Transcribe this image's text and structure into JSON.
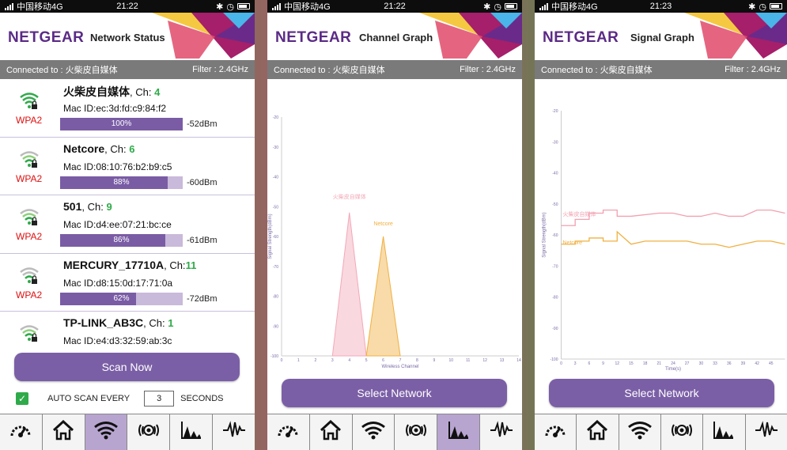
{
  "brand": "NETGEAR",
  "colors": {
    "purple": "#7b5fa6",
    "brand_purple": "#5b2a86",
    "wpa_red": "#e01010",
    "channel_green": "#2faa4a"
  },
  "screens": [
    {
      "status": {
        "carrier": "中国移动4G",
        "time": "21:22"
      },
      "title": "Network Status",
      "connected_label": "Connected to : 火柴皮自媒体",
      "filter_label": "Filter : 2.4GHz",
      "networks": [
        {
          "name": "火柴皮自媒体",
          "ch_label": ", Ch: ",
          "channel": "4",
          "mac": "Mac ID:ec:3d:fd:c9:84:f2",
          "security": "WPA2",
          "signal_pct": 100,
          "signal_text": "100%",
          "dbm": "-52dBm",
          "wifi_icon": "wifi-lock-icon"
        },
        {
          "name": "Netcore",
          "ch_label": ", Ch: ",
          "channel": "6",
          "mac": "Mac ID:08:10:76:b2:b9:c5",
          "security": "WPA2",
          "signal_pct": 88,
          "signal_text": "88%",
          "dbm": "-60dBm",
          "wifi_icon": "wifi-lock-icon"
        },
        {
          "name": "501",
          "ch_label": ", Ch: ",
          "channel": "9",
          "mac": "Mac ID:d4:ee:07:21:bc:ce",
          "security": "WPA2",
          "signal_pct": 86,
          "signal_text": "86%",
          "dbm": "-61dBm",
          "wifi_icon": "wifi-lock-icon"
        },
        {
          "name": "MERCURY_17710A",
          "ch_label": ", Ch:",
          "channel": "11",
          "mac": "Mac ID:d8:15:0d:17:71:0a",
          "security": "WPA2",
          "signal_pct": 62,
          "signal_text": "62%",
          "dbm": "-72dBm",
          "wifi_icon": "wifi-lock-icon"
        },
        {
          "name": "TP-LINK_AB3C",
          "ch_label": ", Ch: ",
          "channel": "1",
          "mac": "Mac ID:e4:d3:32:59:ab:3c",
          "security": "",
          "signal_pct": 0,
          "signal_text": "",
          "dbm": "",
          "wifi_icon": "wifi-lock-icon"
        }
      ],
      "scan_button": "Scan Now",
      "auto_scan_label": "AUTO SCAN EVERY",
      "auto_scan_value": "3",
      "seconds_label": "SECONDS",
      "auto_scan_checked": true,
      "active_nav": 2
    },
    {
      "status": {
        "carrier": "中国移动4G",
        "time": "21:22"
      },
      "title": "Channel Graph",
      "connected_label": "Connected to : 火柴皮自媒体",
      "filter_label": "Filter : 2.4GHz",
      "select_button": "Select Network",
      "active_nav": 4
    },
    {
      "status": {
        "carrier": "中国移动4G",
        "time": "21:23"
      },
      "title": "Signal Graph",
      "connected_label": "Connected to : 火柴皮自媒体",
      "filter_label": "Filter : 2.4GHz",
      "select_button": "Select Network",
      "active_nav": -1
    }
  ],
  "nav_icons": [
    "speedometer-icon",
    "home-icon",
    "wifi-icon",
    "radar-icon",
    "channel-graph-icon",
    "signal-graph-icon"
  ],
  "chart_data": [
    {
      "type": "area",
      "title": "",
      "xlabel": "Wireless Channel",
      "ylabel": "Signal Strength(dBm)",
      "ylim": [
        -100,
        -20
      ],
      "yticks": [
        "-20",
        "-30",
        "-40",
        "-50",
        "-60",
        "-70",
        "-80",
        "-90",
        "-100"
      ],
      "xticks": [
        "0",
        "1",
        "2",
        "3",
        "4",
        "5",
        "6",
        "7",
        "8",
        "9",
        "10",
        "11",
        "12",
        "13",
        "14"
      ],
      "series": [
        {
          "name": "火柴皮自媒体",
          "channel": 4,
          "peak": -52,
          "color": "#f2a8b8"
        },
        {
          "name": "Netcore",
          "channel": 6,
          "peak": -60,
          "color": "#f0b040"
        }
      ]
    },
    {
      "type": "line",
      "title": "",
      "xlabel": "Time(s)",
      "ylabel": "Signal Strength(dBm)",
      "ylim": [
        -100,
        -20
      ],
      "yticks": [
        "-20",
        "-30",
        "-40",
        "-50",
        "-60",
        "-70",
        "-80",
        "-90",
        "-100"
      ],
      "xticks": [
        "0",
        "3",
        "6",
        "9",
        "12",
        "15",
        "18",
        "21",
        "24",
        "27",
        "30",
        "33",
        "36",
        "39",
        "42",
        "45"
      ],
      "series": [
        {
          "name": "火柴皮自媒体",
          "color": "#f2a0b0",
          "x": [
            0,
            3,
            3,
            6,
            6,
            9,
            9,
            12,
            12,
            15,
            21,
            24,
            27,
            30,
            33,
            36,
            39,
            42,
            45,
            48
          ],
          "y": [
            -57,
            -57,
            -55,
            -55,
            -53,
            -53,
            -52,
            -52,
            -54,
            -54,
            -53,
            -53,
            -54,
            -54,
            -53,
            -54,
            -54,
            -52,
            -52,
            -53
          ]
        },
        {
          "name": "Netcore",
          "color": "#f0b040",
          "x": [
            0,
            3,
            3,
            6,
            6,
            9,
            9,
            12,
            12,
            15,
            18,
            21,
            24,
            27,
            30,
            33,
            36,
            39,
            42,
            45,
            48
          ],
          "y": [
            -63,
            -63,
            -62,
            -62,
            -61,
            -61,
            -62,
            -62,
            -59,
            -63,
            -62,
            -62,
            -62,
            -62,
            -63,
            -63,
            -64,
            -63,
            -62,
            -62,
            -63
          ]
        }
      ]
    }
  ]
}
